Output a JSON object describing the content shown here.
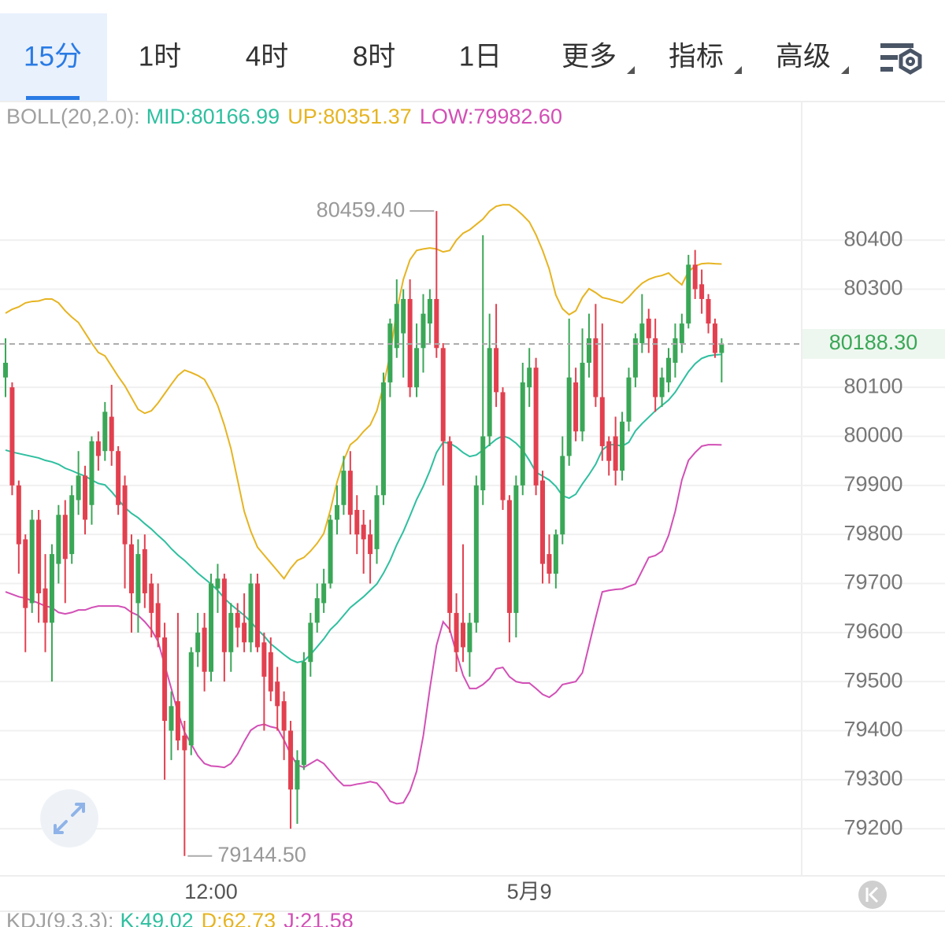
{
  "tabs": {
    "items": [
      "15分",
      "1时",
      "4时",
      "8时",
      "1日",
      "更多",
      "指标",
      "高级"
    ],
    "active": 0
  },
  "indicator_legend": {
    "name": "BOLL(20,2.0):",
    "mid": "MID:80166.99",
    "up": "UP:80351.37",
    "low": "LOW:79982.60"
  },
  "sub_indicator": {
    "name": "KDJ(9,3,3):",
    "k": "K:49.02",
    "d": "D:62.73",
    "j": "J:21.58"
  },
  "chart_data": {
    "type": "candlestick",
    "categories": [
      null,
      null,
      null,
      null,
      null,
      null,
      null,
      null,
      null,
      null,
      null,
      null,
      null,
      null,
      null,
      null,
      null,
      null,
      null,
      null,
      null,
      null,
      null,
      null,
      null,
      null,
      null,
      null,
      null,
      null,
      null,
      "12:00",
      null,
      null,
      null,
      null,
      null,
      null,
      null,
      null,
      null,
      null,
      null,
      null,
      null,
      null,
      null,
      null,
      null,
      null,
      null,
      null,
      null,
      null,
      null,
      null,
      null,
      null,
      null,
      null,
      null,
      null,
      null,
      null,
      null,
      null,
      null,
      null,
      null,
      null,
      null,
      null,
      null,
      null,
      null,
      null,
      null,
      null,
      null,
      "5月9",
      null,
      null,
      null,
      null,
      null,
      null,
      null,
      null,
      null,
      null,
      null,
      null,
      null,
      null,
      null,
      null,
      null,
      null,
      null,
      null,
      null,
      null,
      null,
      null,
      null,
      null,
      null,
      null,
      null
    ],
    "open": [
      80120,
      80100,
      79900,
      79790,
      79660,
      79830,
      79690,
      79620,
      79740,
      79840,
      79760,
      79870,
      79920,
      79860,
      79990,
      79970,
      80040,
      79970,
      79900,
      79780,
      79660,
      79770,
      79700,
      79660,
      79590,
      79400,
      79460,
      79390,
      79370,
      79560,
      79610,
      79520,
      79690,
      79710,
      79560,
      79640,
      79620,
      79580,
      79700,
      79580,
      79560,
      79500,
      79460,
      79400,
      79280,
      79330,
      79540,
      79620,
      79660,
      79700,
      79830,
      79860,
      79930,
      79850,
      79820,
      79800,
      79770,
      79880,
      80110,
      80180,
      80210,
      80280,
      80100,
      80180,
      80230,
      80280,
      80180,
      79990,
      79640,
      79620,
      79560,
      79620,
      79890,
      80000,
      80180,
      80090,
      79870,
      79640,
      79900,
      80100,
      80140,
      79910,
      79760,
      79720,
      79800,
      79960,
      80110,
      80010,
      80150,
      80200,
      80080,
      79990,
      80000,
      79930,
      80030,
      80120,
      80190,
      80240,
      80200,
      80080,
      80110,
      80150,
      80190,
      80230,
      80350,
      80310,
      80280,
      80230,
      80170
    ],
    "high": [
      80200,
      80110,
      79910,
      79800,
      79850,
      79850,
      79760,
      79780,
      79860,
      79870,
      79900,
      79970,
      79940,
      80000,
      80010,
      80070,
      80105,
      79980,
      79920,
      79800,
      79790,
      79800,
      79720,
      79700,
      79620,
      79480,
      79640,
      79420,
      79570,
      79640,
      79640,
      79720,
      79740,
      79720,
      79660,
      79660,
      79680,
      79720,
      79720,
      79600,
      79590,
      79530,
      79480,
      79420,
      79360,
      79560,
      79640,
      79700,
      79730,
      79840,
      79900,
      79960,
      79970,
      79880,
      79850,
      79830,
      79900,
      80130,
      80240,
      80320,
      80300,
      80320,
      80230,
      80290,
      80300,
      80459.4,
      80190,
      80000,
      79680,
      79780,
      79640,
      79920,
      80410,
      80250,
      80270,
      80100,
      79880,
      79920,
      80150,
      80180,
      80160,
      79930,
      79800,
      79810,
      80000,
      80240,
      80140,
      80220,
      80250,
      80270,
      80230,
      80000,
      80040,
      80050,
      80140,
      80210,
      80290,
      80260,
      80240,
      80140,
      80180,
      80230,
      80250,
      80370,
      80380,
      80340,
      80290,
      80240,
      80200
    ],
    "low": [
      80080,
      79880,
      79720,
      79560,
      79640,
      79620,
      79560,
      79500,
      79700,
      79660,
      79740,
      79840,
      79800,
      79820,
      79930,
      79950,
      79940,
      79840,
      79690,
      79600,
      79600,
      79650,
      79590,
      79570,
      79300,
      79340,
      79360,
      79144.5,
      79350,
      79530,
      79480,
      79500,
      79640,
      79500,
      79520,
      79570,
      79560,
      79560,
      79560,
      79400,
      79460,
      79400,
      79340,
      79200,
      79210,
      79320,
      79510,
      79600,
      79640,
      79690,
      79800,
      79840,
      79800,
      79760,
      79720,
      79700,
      79740,
      79860,
      80080,
      80160,
      80120,
      80080,
      80080,
      80130,
      80190,
      80160,
      79900,
      79600,
      79520,
      79540,
      79510,
      79600,
      79860,
      79980,
      80060,
      79850,
      79580,
      79590,
      79880,
      80060,
      79880,
      79700,
      79700,
      79690,
      79780,
      79940,
      79990,
      79990,
      80120,
      80060,
      79950,
      79920,
      79900,
      79910,
      80010,
      80100,
      80170,
      80170,
      80050,
      80060,
      80090,
      80120,
      80170,
      80220,
      80280,
      80250,
      80210,
      80160,
      80110
    ],
    "close": [
      80150,
      79900,
      79780,
      79650,
      79830,
      79680,
      79620,
      79760,
      79840,
      79750,
      79880,
      79920,
      79830,
      79990,
      79960,
      80050,
      79970,
      79860,
      79780,
      79680,
      79760,
      79680,
      79640,
      79590,
      79420,
      79450,
      79380,
      79360,
      79560,
      79600,
      79520,
      79700,
      79710,
      79560,
      79640,
      79610,
      79580,
      79700,
      79570,
      79510,
      79480,
      79450,
      79400,
      79280,
      79340,
      79540,
      79620,
      79670,
      79700,
      79830,
      79860,
      79930,
      79840,
      79800,
      79790,
      79760,
      79880,
      80110,
      80230,
      80270,
      80280,
      80100,
      80180,
      80250,
      80280,
      80180,
      79990,
      79640,
      79560,
      79570,
      79620,
      79900,
      80000,
      80180,
      80090,
      79870,
      79640,
      79900,
      80110,
      80140,
      79900,
      79740,
      79720,
      79800,
      79960,
      80120,
      80010,
      80150,
      80200,
      80080,
      79980,
      79950,
      79930,
      80030,
      80120,
      80200,
      80230,
      80200,
      80080,
      80120,
      80160,
      80200,
      80230,
      80350,
      80300,
      80280,
      80230,
      80170,
      80188.3
    ],
    "up_color": "#3aa757",
    "down_color": "#e2404f",
    "bands": [
      {
        "color": "#e6b422",
        "values": [
          80251,
          80259,
          80264,
          80272,
          80275,
          80276,
          80280,
          80280,
          80272,
          80256,
          80243,
          80232,
          80211,
          80190,
          80171,
          80164,
          80143,
          80122,
          80103,
          80079,
          80055,
          80047,
          80052,
          80068,
          80087,
          80106,
          80124,
          80135,
          80130,
          80124,
          80116,
          80092,
          80063,
          80023,
          79975,
          79911,
          79847,
          79806,
          79774,
          79758,
          79742,
          79726,
          79710,
          79731,
          79747,
          79753,
          79766,
          79782,
          79802,
          79850,
          79907,
          79951,
          79983,
          79994,
          80010,
          80023,
          80052,
          80103,
          80167,
          80256,
          80320,
          80360,
          80379,
          80382,
          80384,
          80382,
          80376,
          80379,
          80400,
          80414,
          80421,
          80432,
          80443,
          80459,
          80469,
          80472,
          80472,
          80463,
          80451,
          80437,
          80411,
          80379,
          80341,
          80288,
          80260,
          80248,
          80256,
          80283,
          80301,
          80293,
          80283,
          80280,
          80276,
          80272,
          80284,
          80299,
          80312,
          80320,
          80325,
          80328,
          80333,
          80320,
          80309,
          80336,
          80347,
          80352,
          80353,
          80352,
          80351.37
        ]
      },
      {
        "color": "#2ebf9f",
        "values": [
          79972,
          79968,
          79965,
          79962,
          79959,
          79956,
          79951,
          79948,
          79943,
          79935,
          79930,
          79924,
          79919,
          79911,
          79904,
          79901,
          79887,
          79871,
          79855,
          79843,
          79834,
          79822,
          79811,
          79798,
          79786,
          79771,
          79758,
          79747,
          79734,
          79721,
          79710,
          79699,
          79686,
          79670,
          79657,
          79646,
          79635,
          79622,
          79606,
          79593,
          79577,
          79566,
          79555,
          79545,
          79539,
          79542,
          79555,
          79571,
          79587,
          79606,
          79619,
          79635,
          79651,
          79662,
          79673,
          79686,
          79699,
          79721,
          79747,
          79779,
          79806,
          79838,
          79871,
          79898,
          79930,
          79967,
          79988,
          79986,
          79978,
          79967,
          79959,
          79962,
          79972,
          79983,
          79994,
          80001,
          79996,
          79986,
          79972,
          79951,
          79927,
          79919,
          79911,
          79898,
          79879,
          79874,
          79882,
          79903,
          79922,
          79943,
          79972,
          79983,
          79983,
          79980,
          79988,
          80011,
          80026,
          80039,
          80052,
          80063,
          80074,
          80090,
          80111,
          80132,
          80148,
          80159,
          80164,
          80166,
          80166.99
        ]
      },
      {
        "color": "#d24fb6",
        "values": [
          79683,
          79678,
          79673,
          79670,
          79665,
          79660,
          79654,
          79651,
          79641,
          79638,
          79641,
          79646,
          79646,
          79651,
          79654,
          79654,
          79654,
          79654,
          79651,
          79641,
          79635,
          79622,
          79606,
          79582,
          79534,
          79486,
          79437,
          79397,
          79373,
          79349,
          79333,
          79328,
          79327,
          79325,
          79333,
          79352,
          79378,
          79401,
          79410,
          79413,
          79408,
          79405,
          79381,
          79352,
          79330,
          79325,
          79333,
          79341,
          79333,
          79317,
          79301,
          79288,
          79288,
          79291,
          79293,
          79296,
          79293,
          79277,
          79256,
          79251,
          79253,
          79277,
          79317,
          79389,
          79486,
          79574,
          79622,
          79606,
          79558,
          79513,
          79486,
          79486,
          79494,
          79506,
          79526,
          79529,
          79510,
          79500,
          79497,
          79497,
          79486,
          79474,
          79468,
          79478,
          79494,
          79497,
          79500,
          79518,
          79574,
          79630,
          79683,
          79686,
          79688,
          79689,
          79694,
          79699,
          79726,
          79753,
          79757,
          79766,
          79798,
          79847,
          79911,
          79951,
          79967,
          79980,
          79983,
          79983,
          79982.6
        ]
      }
    ],
    "ylim": [
      79104,
      80681
    ],
    "yticks": [
      80400,
      80300,
      80100,
      80000,
      79900,
      79800,
      79700,
      79600,
      79500,
      79400,
      79300,
      79200
    ],
    "grid": true,
    "last_price": {
      "value": 80188.3,
      "label": "80188.30"
    },
    "max_label": {
      "value": 80459.4,
      "label": "80459.40"
    },
    "min_label": {
      "value": 79144.5,
      "label": "79144.50"
    }
  }
}
